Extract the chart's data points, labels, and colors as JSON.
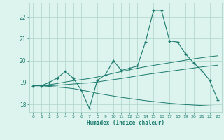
{
  "xlabel": "Humidex (Indice chaleur)",
  "bg_color": "#ddf4ee",
  "grid_color": "#aed4ca",
  "line_color": "#1a7a6e",
  "x_ticks": [
    0,
    1,
    2,
    3,
    4,
    5,
    6,
    7,
    8,
    9,
    10,
    11,
    12,
    13,
    14,
    15,
    16,
    17,
    18,
    19,
    20,
    21,
    22,
    23
  ],
  "y_ticks": [
    18,
    19,
    20,
    21,
    22
  ],
  "ylim": [
    17.65,
    22.65
  ],
  "xlim": [
    -0.5,
    23.5
  ],
  "main_line": [
    18.85,
    18.85,
    19.0,
    19.2,
    19.5,
    19.2,
    18.65,
    17.82,
    19.1,
    19.35,
    20.0,
    19.55,
    19.65,
    19.75,
    20.85,
    22.3,
    22.3,
    20.9,
    20.85,
    20.3,
    19.9,
    19.55,
    19.1,
    18.2
  ],
  "line2": [
    18.85,
    18.85,
    18.9,
    18.95,
    19.02,
    19.08,
    19.13,
    19.18,
    19.25,
    19.33,
    19.42,
    19.5,
    19.58,
    19.65,
    19.72,
    19.78,
    19.84,
    19.9,
    19.96,
    20.02,
    20.08,
    20.13,
    20.18,
    20.22
  ],
  "line3": [
    18.85,
    18.85,
    18.85,
    18.87,
    18.9,
    18.93,
    18.96,
    18.98,
    19.02,
    19.08,
    19.13,
    19.18,
    19.24,
    19.3,
    19.36,
    19.41,
    19.46,
    19.51,
    19.56,
    19.61,
    19.66,
    19.71,
    19.75,
    19.79
  ],
  "line4": [
    18.85,
    18.85,
    18.82,
    18.79,
    18.76,
    18.72,
    18.65,
    18.58,
    18.5,
    18.44,
    18.38,
    18.32,
    18.27,
    18.22,
    18.17,
    18.13,
    18.09,
    18.05,
    18.02,
    17.99,
    17.97,
    17.95,
    17.93,
    17.92
  ]
}
